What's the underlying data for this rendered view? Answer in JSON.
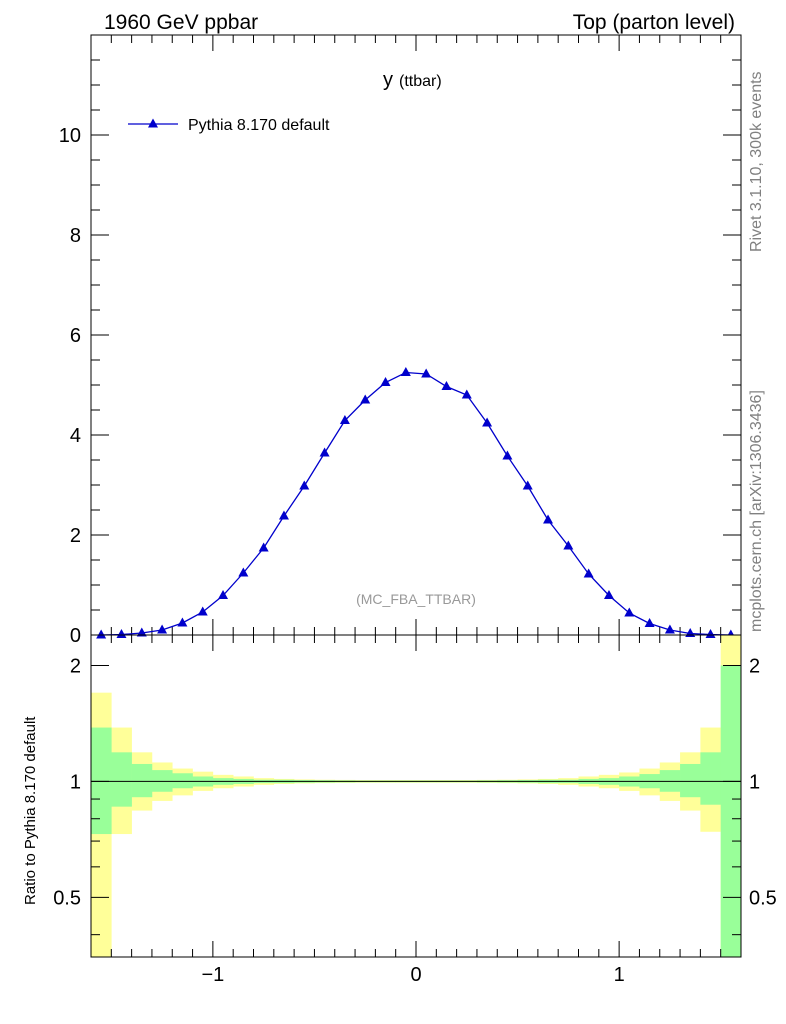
{
  "header": {
    "left": "1960 GeV ppbar",
    "right": "Top (parton level)"
  },
  "side_labels": {
    "rivet": "Rivet 3.1.10,  300k events",
    "mcplots": "mcplots.cern.ch [arXiv:1306.3436]"
  },
  "chart_data": [
    {
      "type": "line",
      "title": "y",
      "title_sub": "(ttbar)",
      "watermark": "(MC_FBA_TTBAR)",
      "xlim": [
        -1.6,
        1.6
      ],
      "ylim": [
        0,
        12
      ],
      "yticks": [
        0,
        2,
        4,
        6,
        8,
        10
      ],
      "ytick_labels": [
        "0",
        "2",
        "4",
        "6",
        "8",
        "10"
      ],
      "series": [
        {
          "name": "Pythia 8.170 default",
          "color": "#0000cc",
          "marker": "triangle-up",
          "x": [
            -1.55,
            -1.45,
            -1.35,
            -1.25,
            -1.15,
            -1.05,
            -0.95,
            -0.85,
            -0.75,
            -0.65,
            -0.55,
            -0.45,
            -0.35,
            -0.25,
            -0.15,
            -0.05,
            0.05,
            0.15,
            0.25,
            0.35,
            0.45,
            0.55,
            0.65,
            0.75,
            0.85,
            0.95,
            1.05,
            1.15,
            1.25,
            1.35,
            1.45,
            1.55
          ],
          "y": [
            0.0,
            0.01,
            0.04,
            0.1,
            0.24,
            0.46,
            0.79,
            1.24,
            1.74,
            2.38,
            2.98,
            3.64,
            4.29,
            4.7,
            5.05,
            5.25,
            5.22,
            4.97,
            4.8,
            4.24,
            3.58,
            2.98,
            2.3,
            1.78,
            1.22,
            0.79,
            0.44,
            0.23,
            0.1,
            0.03,
            0.01,
            0.0
          ]
        }
      ]
    },
    {
      "type": "ratio",
      "ylabel": "Ratio to Pythia 8.170 default",
      "xlim": [
        -1.6,
        1.6
      ],
      "ylim": [
        0.35,
        2.4
      ],
      "yscale": "log",
      "reference": 1,
      "yticks": [
        0.5,
        1,
        2
      ],
      "ytick_labels": [
        "0.5",
        "1",
        "2"
      ],
      "xticks": [
        -1,
        0,
        1
      ],
      "xtick_labels": [
        "−1",
        "0",
        "1"
      ],
      "bin_edges": [
        -1.6,
        -1.5,
        -1.4,
        -1.3,
        -1.2,
        -1.1,
        -1.0,
        -0.9,
        -0.8,
        -0.7,
        -0.6,
        -0.5,
        -0.4,
        -0.3,
        -0.2,
        -0.1,
        0.0,
        0.1,
        0.2,
        0.3,
        0.4,
        0.5,
        0.6,
        0.7,
        0.8,
        0.9,
        1.0,
        1.1,
        1.2,
        1.3,
        1.4,
        1.5,
        1.6
      ],
      "band_inner": {
        "color": "#99ff99",
        "lo": [
          0.73,
          0.86,
          0.91,
          0.94,
          0.96,
          0.97,
          0.98,
          0.985,
          0.99,
          0.99,
          0.992,
          0.993,
          0.994,
          0.995,
          0.995,
          0.995,
          0.995,
          0.995,
          0.995,
          0.994,
          0.993,
          0.992,
          0.99,
          0.99,
          0.985,
          0.98,
          0.97,
          0.96,
          0.94,
          0.91,
          0.87,
          0.35
        ],
        "hi": [
          1.38,
          1.19,
          1.11,
          1.07,
          1.05,
          1.03,
          1.02,
          1.015,
          1.01,
          1.01,
          1.008,
          1.007,
          1.006,
          1.005,
          1.005,
          1.005,
          1.005,
          1.005,
          1.005,
          1.006,
          1.007,
          1.008,
          1.01,
          1.01,
          1.015,
          1.02,
          1.03,
          1.045,
          1.07,
          1.11,
          1.19,
          2.0
        ]
      },
      "band_outer": {
        "color": "#ffff99",
        "lo": [
          0.35,
          0.73,
          0.84,
          0.89,
          0.92,
          0.945,
          0.96,
          0.97,
          0.98,
          0.985,
          0.988,
          0.99,
          0.991,
          0.992,
          0.992,
          0.992,
          0.992,
          0.992,
          0.992,
          0.991,
          0.99,
          0.988,
          0.985,
          0.98,
          0.97,
          0.96,
          0.945,
          0.92,
          0.89,
          0.84,
          0.74,
          0.35
        ],
        "hi": [
          1.7,
          1.38,
          1.19,
          1.12,
          1.08,
          1.06,
          1.04,
          1.03,
          1.02,
          1.015,
          1.012,
          1.01,
          1.009,
          1.008,
          1.008,
          1.008,
          1.008,
          1.008,
          1.008,
          1.009,
          1.01,
          1.012,
          1.015,
          1.02,
          1.03,
          1.04,
          1.055,
          1.08,
          1.12,
          1.19,
          1.38,
          2.4
        ]
      }
    }
  ]
}
